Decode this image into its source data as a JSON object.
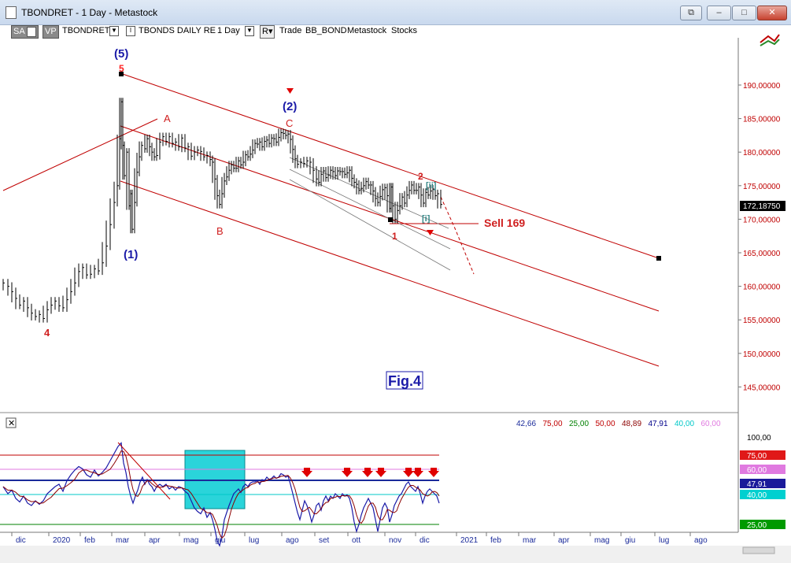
{
  "window": {
    "title": "TBONDRET - 1 Day - Metastock",
    "buttons": {
      "restore": "⧉",
      "minimize": "–",
      "maximize": "□",
      "close": "✕"
    }
  },
  "toolbar": {
    "sa": "SA",
    "vp": "VP",
    "symbol": "TBONDRET",
    "security_name": "TBONDS DAILY RE",
    "period": "1 Day",
    "r": "R",
    "trade": "Trade",
    "expert": "BB_BOND",
    "source": "Metastock",
    "type": "Stocks"
  },
  "price_panel": {
    "axis_ticks": [
      "190,00000",
      "185,00000",
      "180,00000",
      "175,00000",
      "170,00000",
      "165,00000",
      "160,00000",
      "155,00000",
      "150,00000",
      "145,00000"
    ],
    "last_price": "172,18750",
    "annotations": {
      "w5": "(5)",
      "w5_red": "5",
      "w2": "(2)",
      "w1": "(1)",
      "a": "A",
      "b": "B",
      "c": "C",
      "w4": "4",
      "sub1": "1",
      "sub2": "2",
      "ii": "[ii]",
      "i": "[i]",
      "sell": "Sell 169",
      "fig": "Fig.4"
    }
  },
  "indicator_panel": {
    "values": [
      {
        "text": "42,66",
        "color": "#1a2a9a"
      },
      {
        "text": "75,00",
        "color": "#c00000"
      },
      {
        "text": "25,00",
        "color": "#008000"
      },
      {
        "text": "50,00",
        "color": "#c00000"
      },
      {
        "text": "48,89",
        "color": "#8b0000"
      },
      {
        "text": "47,91",
        "color": "#00008b"
      },
      {
        "text": "40,00",
        "color": "#00c8c8"
      },
      {
        "text": "60,00",
        "color": "#e07ae0"
      }
    ],
    "axis": {
      "top": "100,00",
      "b75": "75,00",
      "b60": "60,00",
      "b47": "47,91",
      "b40": "40,00",
      "b25": "25,00"
    },
    "close": "✕"
  },
  "date_axis": [
    "dic",
    "2020",
    "feb",
    "mar",
    "apr",
    "mag",
    "giu",
    "lug",
    "ago",
    "set",
    "ott",
    "nov",
    "dic",
    "2021",
    "feb",
    "mar",
    "apr",
    "mag",
    "giu",
    "lug",
    "ago"
  ],
  "colors": {
    "price_axis": "#c00000",
    "channel": "#c00000",
    "bars": "#000000",
    "pivot": "#1a1aa8",
    "box": "#2ad4da"
  },
  "price_series": [
    [
      4,
      160.5
    ],
    [
      10,
      160
    ],
    [
      15,
      159.2
    ],
    [
      20,
      158.2
    ],
    [
      25,
      157.2
    ],
    [
      30,
      157.8
    ],
    [
      35,
      156.8
    ],
    [
      40,
      156
    ],
    [
      45,
      155.5
    ],
    [
      50,
      155.8
    ],
    [
      55,
      155.2
    ],
    [
      60,
      156.5
    ],
    [
      65,
      157.2
    ],
    [
      70,
      157.8
    ],
    [
      75,
      157.1
    ],
    [
      80,
      156.8
    ],
    [
      85,
      158
    ],
    [
      90,
      159.2
    ],
    [
      95,
      160.5
    ],
    [
      100,
      162.2
    ],
    [
      105,
      162.8
    ],
    [
      110,
      161.7
    ],
    [
      115,
      161.8
    ],
    [
      120,
      162.6
    ],
    [
      125,
      162.3
    ],
    [
      130,
      163.5
    ],
    [
      135,
      166
    ],
    [
      140,
      169.2
    ],
    [
      145,
      172.5
    ],
    [
      149,
      175
    ],
    [
      152,
      182
    ],
    [
      154,
      187.5
    ],
    [
      156,
      181
    ],
    [
      158,
      176.5
    ],
    [
      161,
      180
    ],
    [
      164,
      172
    ],
    [
      166,
      173.8
    ],
    [
      168,
      168.5
    ],
    [
      171,
      172.5
    ],
    [
      174,
      177
    ],
    [
      177,
      179.3
    ],
    [
      180,
      181
    ],
    [
      184,
      180.5
    ],
    [
      187,
      182
    ],
    [
      190,
      180.8
    ],
    [
      193,
      180
    ],
    [
      196,
      179.3
    ],
    [
      199,
      179.5
    ],
    [
      203,
      181.5
    ],
    [
      207,
      182.3
    ],
    [
      211,
      181.6
    ],
    [
      215,
      182.3
    ],
    [
      219,
      181.3
    ],
    [
      223,
      181.5
    ],
    [
      227,
      180.8
    ],
    [
      231,
      182.1
    ],
    [
      235,
      180.6
    ],
    [
      239,
      180.8
    ],
    [
      243,
      179.4
    ],
    [
      247,
      180
    ],
    [
      251,
      180.3
    ],
    [
      255,
      180.1
    ],
    [
      259,
      179.3
    ],
    [
      263,
      179.5
    ],
    [
      267,
      178.9
    ],
    [
      270,
      178.5
    ],
    [
      273,
      176
    ],
    [
      276,
      173.5
    ],
    [
      279,
      172.2
    ],
    [
      282,
      173.8
    ],
    [
      285,
      175.7
    ],
    [
      288,
      176.3
    ],
    [
      291,
      177.3
    ],
    [
      294,
      178.1
    ],
    [
      297,
      177.6
    ],
    [
      300,
      177.6
    ],
    [
      303,
      178.7
    ],
    [
      306,
      178.1
    ],
    [
      309,
      178.5
    ],
    [
      312,
      179.6
    ],
    [
      315,
      179.3
    ],
    [
      318,
      179.7
    ],
    [
      321,
      180.3
    ],
    [
      324,
      181.3
    ],
    [
      327,
      181.2
    ],
    [
      330,
      181.5
    ],
    [
      333,
      180.8
    ],
    [
      336,
      181.6
    ],
    [
      339,
      181.8
    ],
    [
      342,
      181.3
    ],
    [
      345,
      182.1
    ],
    [
      348,
      182
    ],
    [
      351,
      181.5
    ],
    [
      354,
      182.2
    ],
    [
      357,
      182.9
    ],
    [
      360,
      182.8
    ],
    [
      363,
      182.5
    ],
    [
      366,
      182.7
    ],
    [
      369,
      181.9
    ],
    [
      372,
      180.4
    ],
    [
      375,
      179
    ],
    [
      378,
      178.2
    ],
    [
      382,
      178.5
    ],
    [
      386,
      178.3
    ],
    [
      390,
      178.7
    ],
    [
      394,
      178.5
    ],
    [
      398,
      177.3
    ],
    [
      402,
      176
    ],
    [
      405,
      175.5
    ],
    [
      408,
      176.7
    ],
    [
      411,
      177.2
    ],
    [
      414,
      176.2
    ],
    [
      417,
      176.6
    ],
    [
      420,
      177.3
    ],
    [
      423,
      177.1
    ],
    [
      426,
      176.5
    ],
    [
      429,
      177.2
    ],
    [
      432,
      177.1
    ],
    [
      435,
      177.1
    ],
    [
      438,
      176.7
    ],
    [
      441,
      176.9
    ],
    [
      444,
      177.3
    ],
    [
      447,
      176.1
    ],
    [
      450,
      175.5
    ],
    [
      453,
      175.2
    ],
    [
      456,
      174.3
    ],
    [
      459,
      174.6
    ],
    [
      462,
      175
    ],
    [
      465,
      175.6
    ],
    [
      468,
      175.1
    ],
    [
      471,
      175.1
    ],
    [
      474,
      174.2
    ],
    [
      477,
      173.1
    ],
    [
      480,
      172.5
    ],
    [
      483,
      173.4
    ],
    [
      486,
      174.4
    ],
    [
      489,
      174.7
    ],
    [
      492,
      173.5
    ],
    [
      495,
      171.6
    ],
    [
      497,
      174.8
    ],
    [
      499,
      172
    ],
    [
      502,
      170
    ],
    [
      505,
      171.3
    ],
    [
      508,
      172
    ],
    [
      511,
      173.3
    ],
    [
      514,
      172.4
    ],
    [
      517,
      173.6
    ],
    [
      520,
      174.3
    ],
    [
      523,
      175.1
    ],
    [
      526,
      174.3
    ],
    [
      529,
      174.3
    ],
    [
      532,
      174.8
    ],
    [
      535,
      173.6
    ],
    [
      538,
      172.4
    ],
    [
      541,
      174
    ],
    [
      544,
      173.6
    ],
    [
      547,
      174.2
    ],
    [
      550,
      174.5
    ],
    [
      553,
      173.5
    ],
    [
      556,
      173.8
    ],
    [
      560,
      172.2
    ]
  ],
  "indicator_series": [
    [
      4,
      58
    ],
    [
      10,
      52
    ],
    [
      15,
      55
    ],
    [
      20,
      48
    ],
    [
      25,
      45
    ],
    [
      30,
      50
    ],
    [
      35,
      44
    ],
    [
      40,
      42
    ],
    [
      45,
      46
    ],
    [
      50,
      43
    ],
    [
      55,
      46
    ],
    [
      60,
      52
    ],
    [
      65,
      55
    ],
    [
      70,
      58
    ],
    [
      75,
      60
    ],
    [
      80,
      54
    ],
    [
      85,
      63
    ],
    [
      90,
      68
    ],
    [
      95,
      72
    ],
    [
      100,
      75
    ],
    [
      105,
      73
    ],
    [
      110,
      68
    ],
    [
      115,
      66
    ],
    [
      120,
      72
    ],
    [
      125,
      67
    ],
    [
      130,
      70
    ],
    [
      135,
      74
    ],
    [
      140,
      80
    ],
    [
      145,
      86
    ],
    [
      150,
      92
    ],
    [
      154,
      95
    ],
    [
      157,
      78
    ],
    [
      160,
      70
    ],
    [
      163,
      58
    ],
    [
      166,
      50
    ],
    [
      169,
      44
    ],
    [
      172,
      50
    ],
    [
      175,
      55
    ],
    [
      178,
      62
    ],
    [
      181,
      66
    ],
    [
      184,
      60
    ],
    [
      187,
      64
    ],
    [
      190,
      60
    ],
    [
      193,
      58
    ],
    [
      196,
      54
    ],
    [
      199,
      58
    ],
    [
      203,
      60
    ],
    [
      207,
      58
    ],
    [
      211,
      60
    ],
    [
      215,
      56
    ],
    [
      219,
      58
    ],
    [
      223,
      55
    ],
    [
      227,
      58
    ],
    [
      231,
      57
    ],
    [
      235,
      54
    ],
    [
      239,
      52
    ],
    [
      243,
      46
    ],
    [
      247,
      40
    ],
    [
      251,
      37
    ],
    [
      255,
      35
    ],
    [
      259,
      40
    ],
    [
      263,
      32
    ],
    [
      267,
      36
    ],
    [
      270,
      30
    ],
    [
      273,
      22
    ],
    [
      276,
      12
    ],
    [
      279,
      8
    ],
    [
      282,
      16
    ],
    [
      285,
      30
    ],
    [
      288,
      36
    ],
    [
      291,
      42
    ],
    [
      294,
      47
    ],
    [
      297,
      52
    ],
    [
      300,
      54
    ],
    [
      303,
      56
    ],
    [
      306,
      53
    ],
    [
      309,
      58
    ],
    [
      312,
      60
    ],
    [
      315,
      58
    ],
    [
      318,
      61
    ],
    [
      321,
      62
    ],
    [
      324,
      62
    ],
    [
      327,
      63
    ],
    [
      330,
      60
    ],
    [
      333,
      64
    ],
    [
      336,
      63
    ],
    [
      339,
      66
    ],
    [
      342,
      64
    ],
    [
      345,
      65
    ],
    [
      348,
      67
    ],
    [
      351,
      65
    ],
    [
      354,
      66
    ],
    [
      357,
      69
    ],
    [
      360,
      68
    ],
    [
      363,
      66
    ],
    [
      366,
      67
    ],
    [
      369,
      60
    ],
    [
      372,
      52
    ],
    [
      375,
      44
    ],
    [
      378,
      36
    ],
    [
      381,
      30
    ],
    [
      384,
      38
    ],
    [
      387,
      46
    ],
    [
      390,
      42
    ],
    [
      393,
      36
    ],
    [
      396,
      28
    ],
    [
      399,
      34
    ],
    [
      402,
      42
    ],
    [
      405,
      44
    ],
    [
      408,
      38
    ],
    [
      411,
      46
    ],
    [
      414,
      50
    ],
    [
      417,
      46
    ],
    [
      420,
      50
    ],
    [
      423,
      48
    ],
    [
      426,
      52
    ],
    [
      429,
      50
    ],
    [
      432,
      48
    ],
    [
      435,
      52
    ],
    [
      438,
      50
    ],
    [
      441,
      51
    ],
    [
      444,
      48
    ],
    [
      447,
      40
    ],
    [
      450,
      28
    ],
    [
      453,
      20
    ],
    [
      456,
      26
    ],
    [
      459,
      34
    ],
    [
      462,
      40
    ],
    [
      465,
      44
    ],
    [
      468,
      48
    ],
    [
      471,
      44
    ],
    [
      474,
      40
    ],
    [
      477,
      30
    ],
    [
      480,
      20
    ],
    [
      483,
      30
    ],
    [
      486,
      40
    ],
    [
      489,
      44
    ],
    [
      492,
      40
    ],
    [
      495,
      28
    ],
    [
      498,
      34
    ],
    [
      501,
      42
    ],
    [
      504,
      46
    ],
    [
      507,
      50
    ],
    [
      510,
      52
    ],
    [
      513,
      56
    ],
    [
      516,
      60
    ],
    [
      519,
      62
    ],
    [
      522,
      58
    ],
    [
      525,
      56
    ],
    [
      528,
      54
    ],
    [
      531,
      58
    ],
    [
      534,
      52
    ],
    [
      537,
      44
    ],
    [
      540,
      50
    ],
    [
      543,
      54
    ],
    [
      546,
      56
    ],
    [
      549,
      54
    ],
    [
      552,
      52
    ],
    [
      555,
      50
    ],
    [
      558,
      44
    ]
  ]
}
